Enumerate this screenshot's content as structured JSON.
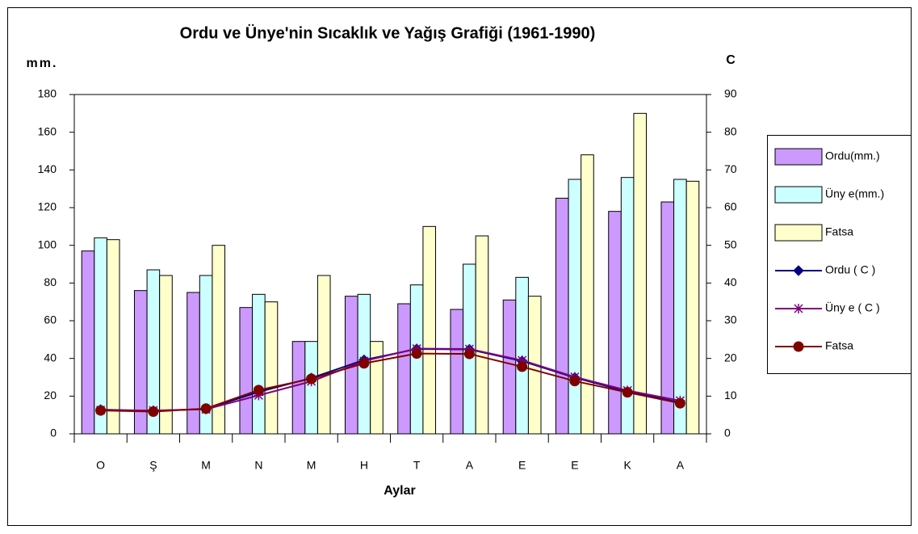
{
  "chart_data": {
    "type": "bar",
    "title": "Ordu ve Ünye'nin Sıcaklık ve Yağış Grafiği (1961-1990)",
    "y_label": "mm.",
    "y2_label": "C",
    "x_label": "Aylar",
    "categories": [
      "O",
      "Ş",
      "M",
      "N",
      "M",
      "H",
      "T",
      "A",
      "E",
      "E",
      "K",
      "A"
    ],
    "ylim": [
      0,
      180
    ],
    "yticks": [
      0,
      20,
      40,
      60,
      80,
      100,
      120,
      140,
      160,
      180
    ],
    "y2lim": [
      0,
      90
    ],
    "y2ticks": [
      0,
      10,
      20,
      30,
      40,
      50,
      60,
      70,
      80,
      90
    ],
    "legend": "right",
    "series": [
      {
        "name": "Ordu(mm.)",
        "type": "bar",
        "color": "#cc99ff",
        "values": [
          97,
          76,
          75,
          67,
          49,
          73,
          69,
          66,
          71,
          125,
          118,
          123
        ]
      },
      {
        "name": "Üny e(mm.)",
        "type": "bar",
        "color": "#ccffff",
        "values": [
          104,
          87,
          84,
          74,
          49,
          74,
          79,
          90,
          83,
          135,
          136,
          135
        ]
      },
      {
        "name": "Fatsa",
        "type": "bar",
        "color": "#ffffcc",
        "values": [
          103,
          84,
          100,
          70,
          84,
          49,
          110,
          105,
          73,
          148,
          170,
          134
        ]
      },
      {
        "name": "Ordu ( C )",
        "type": "line",
        "axis": "y2",
        "marker": "diamond",
        "color": "#000080",
        "values": [
          6.4,
          6.1,
          6.6,
          11.1,
          14.8,
          19.6,
          22.5,
          22.4,
          19.3,
          14.9,
          11.2,
          8.3
        ]
      },
      {
        "name": "Üny e ( C )",
        "type": "line",
        "axis": "y2",
        "marker": "star",
        "color": "#800080",
        "values": [
          6.3,
          6.2,
          6.5,
          10.2,
          13.9,
          19.3,
          22.6,
          22.5,
          19.5,
          15.1,
          11.5,
          8.8
        ]
      },
      {
        "name": "Fatsa",
        "type": "line",
        "axis": "y2",
        "marker": "circle",
        "color": "#800000",
        "values": [
          6.2,
          5.9,
          6.7,
          11.6,
          14.6,
          18.7,
          21.3,
          21.2,
          17.8,
          14.0,
          11.0,
          8.1
        ]
      }
    ]
  }
}
